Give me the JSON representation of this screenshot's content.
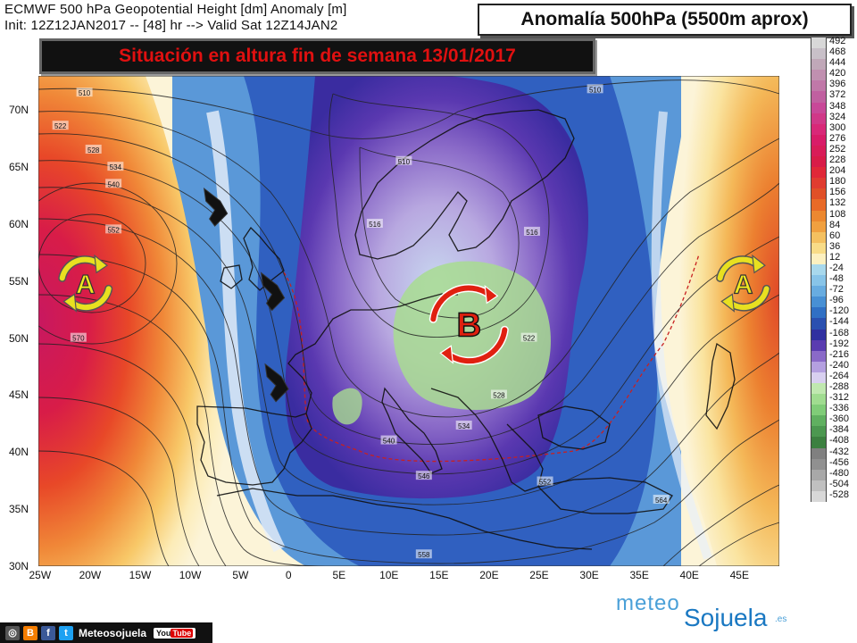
{
  "header": {
    "line1": "ECMWF 500 hPa Geopotential Height [dm] Anomaly [m]",
    "line2": "Init: 12Z12JAN2017 -- [48] hr --> Valid Sat 12Z14JAN2",
    "box_title": "Anomalía 500hPa (5500m aprox)"
  },
  "title": "Situación en altura fin de semana 13/01/2017",
  "map": {
    "lat_labels": [
      "70N",
      "65N",
      "60N",
      "55N",
      "50N",
      "45N",
      "40N",
      "35N",
      "30N"
    ],
    "lon_labels": [
      "25W",
      "20W",
      "15W",
      "10W",
      "5W",
      "0",
      "5E",
      "10E",
      "15E",
      "20E",
      "25E",
      "30E",
      "35E",
      "40E",
      "45E"
    ],
    "contour_labels": [
      {
        "text": "510",
        "lon": -20.4,
        "lat": 71.5
      },
      {
        "text": "510",
        "lon": 30.6,
        "lat": 71.8
      },
      {
        "text": "522",
        "lon": -22.8,
        "lat": 68.6
      },
      {
        "text": "528",
        "lon": -19.5,
        "lat": 66.5
      },
      {
        "text": "534",
        "lon": -17.3,
        "lat": 65.0
      },
      {
        "text": "540",
        "lon": -17.5,
        "lat": 63.5
      },
      {
        "text": "552",
        "lon": -17.5,
        "lat": 59.5
      },
      {
        "text": "570",
        "lon": -21.0,
        "lat": 50.0
      },
      {
        "text": "510",
        "lon": 11.5,
        "lat": 65.5
      },
      {
        "text": "516",
        "lon": 8.6,
        "lat": 60.0
      },
      {
        "text": "516",
        "lon": 24.3,
        "lat": 59.3
      },
      {
        "text": "522",
        "lon": 24.0,
        "lat": 50.0
      },
      {
        "text": "528",
        "lon": 21.0,
        "lat": 45.0
      },
      {
        "text": "534",
        "lon": 17.5,
        "lat": 42.3
      },
      {
        "text": "540",
        "lon": 10.0,
        "lat": 41.0
      },
      {
        "text": "546",
        "lon": 13.5,
        "lat": 37.9
      },
      {
        "text": "552",
        "lon": 25.6,
        "lat": 37.4
      },
      {
        "text": "558",
        "lon": 13.5,
        "lat": 31.0
      },
      {
        "text": "564",
        "lon": 37.2,
        "lat": 35.8
      }
    ],
    "highs": [
      {
        "letter": "A",
        "lon": -20.3,
        "lat": 54.8
      },
      {
        "letter": "A",
        "lon": 45.4,
        "lat": 54.8
      }
    ],
    "low": {
      "letter": "B",
      "lon": 18.0,
      "lat": 51.2
    },
    "flow_arrows": [
      {
        "lon": -7.2,
        "lat": 61.4
      },
      {
        "lon": -1.5,
        "lat": 54.0
      },
      {
        "lon": -1.1,
        "lat": 46.0
      }
    ]
  },
  "colorbar": {
    "labels": [
      "492",
      "468",
      "444",
      "420",
      "396",
      "372",
      "348",
      "324",
      "300",
      "276",
      "252",
      "228",
      "204",
      "180",
      "156",
      "132",
      "108",
      "84",
      "60",
      "36",
      "12",
      "-24",
      "-48",
      "-72",
      "-96",
      "-120",
      "-144",
      "-168",
      "-192",
      "-216",
      "-240",
      "-264",
      "-288",
      "-312",
      "-336",
      "-360",
      "-384",
      "-408",
      "-432",
      "-456",
      "-480",
      "-504",
      "-528"
    ],
    "colors": [
      "#d8d8d8",
      "#c8c0c8",
      "#c0a8b8",
      "#c090b0",
      "#c078a8",
      "#c060a0",
      "#c84898",
      "#d03888",
      "#d82878",
      "#d81c68",
      "#d81c58",
      "#d81c48",
      "#e02838",
      "#e03c30",
      "#e05028",
      "#e86a28",
      "#ec8830",
      "#f0a040",
      "#f4c060",
      "#f8dc88",
      "#fcf0c0",
      "#a8d8ec",
      "#88c4e8",
      "#68ace0",
      "#4890d4",
      "#3070c4",
      "#2a50b0",
      "#3030a0",
      "#5a3cb0",
      "#8a6ac8",
      "#b4a0e0",
      "#d8d0f0",
      "#c0e8b0",
      "#a0dc90",
      "#80cc78",
      "#60b060",
      "#4c9850",
      "#3c8040",
      "#808080",
      "#909090",
      "#a8a8a8",
      "#c0c0c0",
      "#d8d8d8"
    ]
  },
  "footer": {
    "brand": "Meteosojuela",
    "youtube_a": "You",
    "youtube_b": "Tube",
    "icons": [
      "instagram-icon",
      "blogger-icon",
      "facebook-icon",
      "twitter-icon"
    ]
  },
  "logo": {
    "part1": "meteo",
    "part2": "Sojuela",
    "part3": ".es"
  }
}
